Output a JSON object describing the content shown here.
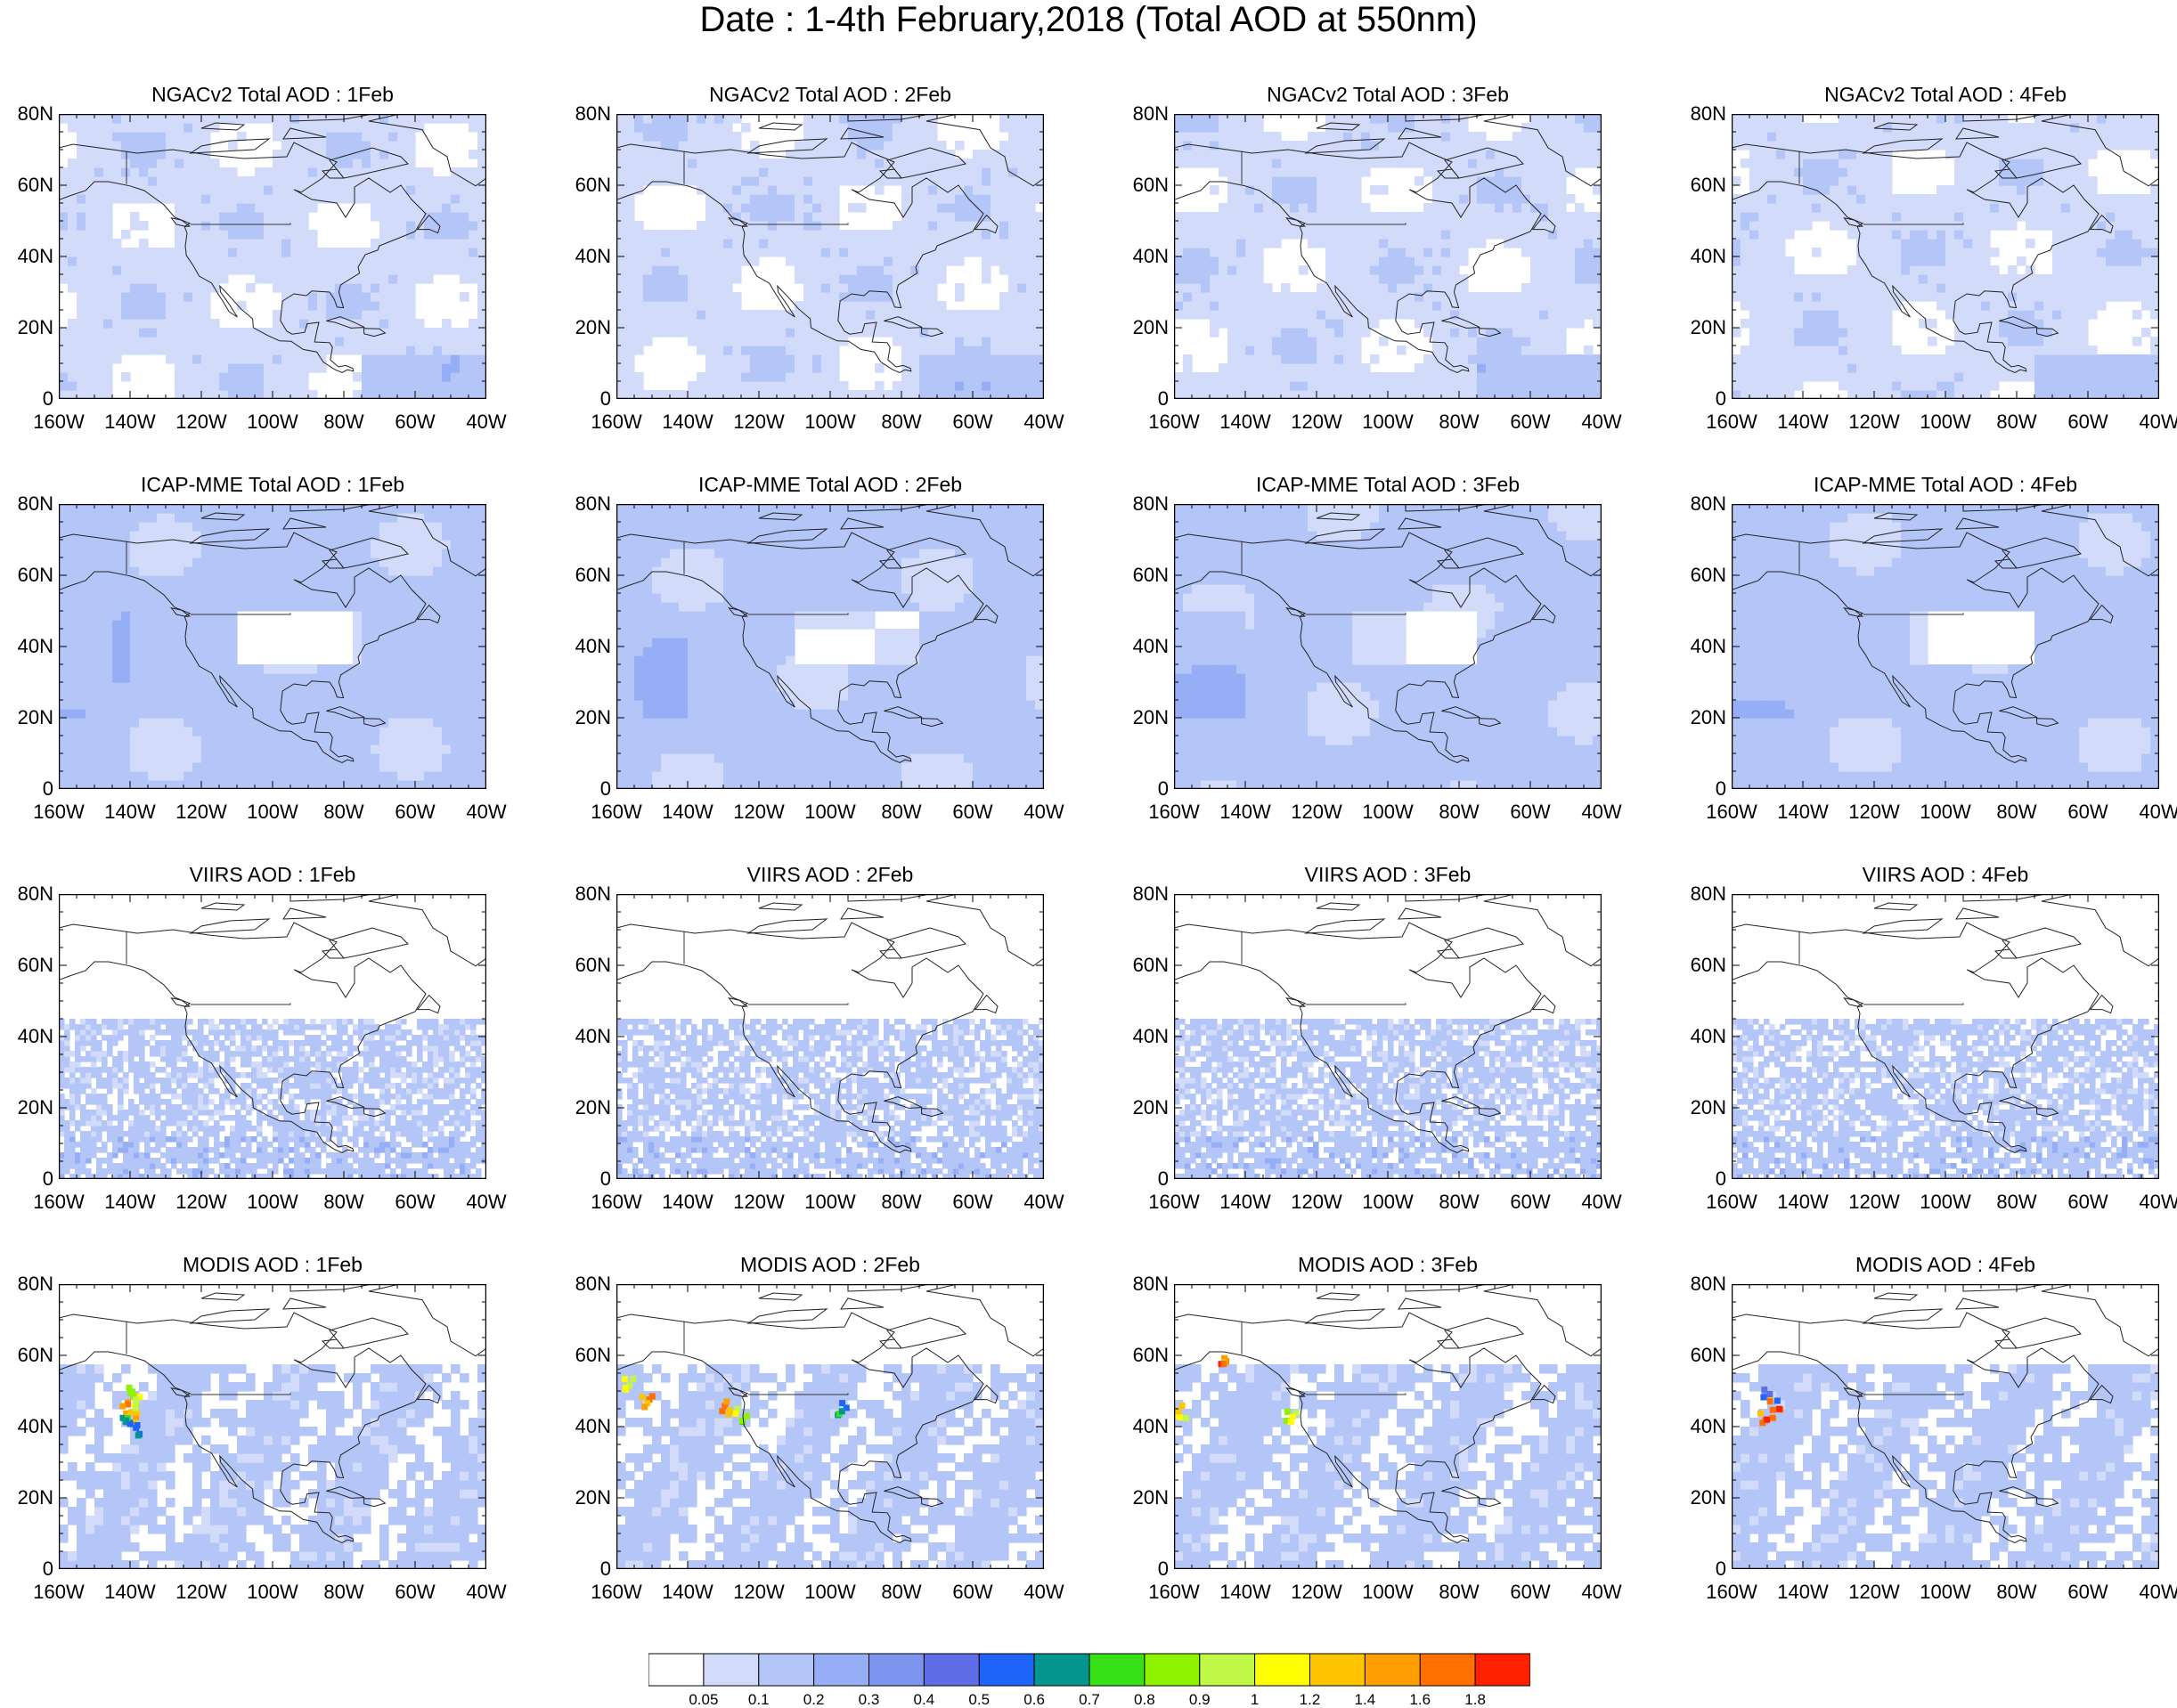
{
  "title": "Date : 1-4th February,2018 (Total AOD at 550nm)",
  "panels": [
    {
      "title": "NGACv2 Total AOD : 1Feb",
      "row": 0,
      "col": 0,
      "pattern": "ngac"
    },
    {
      "title": "NGACv2 Total AOD : 2Feb",
      "row": 0,
      "col": 1,
      "pattern": "ngac"
    },
    {
      "title": "NGACv2 Total AOD : 3Feb",
      "row": 0,
      "col": 2,
      "pattern": "ngac"
    },
    {
      "title": "NGACv2 Total AOD : 4Feb",
      "row": 0,
      "col": 3,
      "pattern": "ngac"
    },
    {
      "title": "ICAP-MME Total AOD : 1Feb",
      "row": 1,
      "col": 0,
      "pattern": "icap"
    },
    {
      "title": "ICAP-MME Total AOD : 2Feb",
      "row": 1,
      "col": 1,
      "pattern": "icap"
    },
    {
      "title": "ICAP-MME Total AOD : 3Feb",
      "row": 1,
      "col": 2,
      "pattern": "icap"
    },
    {
      "title": "ICAP-MME Total AOD : 4Feb",
      "row": 1,
      "col": 3,
      "pattern": "icap"
    },
    {
      "title": "VIIRS AOD : 1Feb",
      "row": 2,
      "col": 0,
      "pattern": "viirs"
    },
    {
      "title": "VIIRS AOD : 2Feb",
      "row": 2,
      "col": 1,
      "pattern": "viirs"
    },
    {
      "title": "VIIRS AOD : 3Feb",
      "row": 2,
      "col": 2,
      "pattern": "viirs"
    },
    {
      "title": "VIIRS AOD : 4Feb",
      "row": 2,
      "col": 3,
      "pattern": "viirs"
    },
    {
      "title": "MODIS AOD : 1Feb",
      "row": 3,
      "col": 0,
      "pattern": "modis"
    },
    {
      "title": "MODIS AOD : 2Feb",
      "row": 3,
      "col": 1,
      "pattern": "modis"
    },
    {
      "title": "MODIS AOD : 3Feb",
      "row": 3,
      "col": 2,
      "pattern": "modis"
    },
    {
      "title": "MODIS AOD : 4Feb",
      "row": 3,
      "col": 3,
      "pattern": "modis"
    }
  ],
  "map": {
    "lat_range": [
      0,
      80
    ],
    "lon_range": [
      -160,
      -40
    ],
    "lat_ticks": [
      "80N",
      "60N",
      "40N",
      "20N",
      "0"
    ],
    "lon_ticks": [
      "160W",
      "140W",
      "120W",
      "100W",
      "80W",
      "60W",
      "40W"
    ]
  },
  "colorbar": {
    "labels": [
      "0.05",
      "0.1",
      "0.2",
      "0.3",
      "0.4",
      "0.5",
      "0.6",
      "0.7",
      "0.8",
      "0.9",
      "1",
      "1.2",
      "1.4",
      "1.6",
      "1.8"
    ],
    "colors": [
      "#ffffff",
      "#d2dcfa",
      "#b4c6f8",
      "#96aef5",
      "#7c96ef",
      "#5f6ee6",
      "#1f64f8",
      "#04968e",
      "#38e018",
      "#8ef200",
      "#c0f848",
      "#fefe00",
      "#ffc400",
      "#ff9e00",
      "#ff7000",
      "#ff2000"
    ]
  }
}
